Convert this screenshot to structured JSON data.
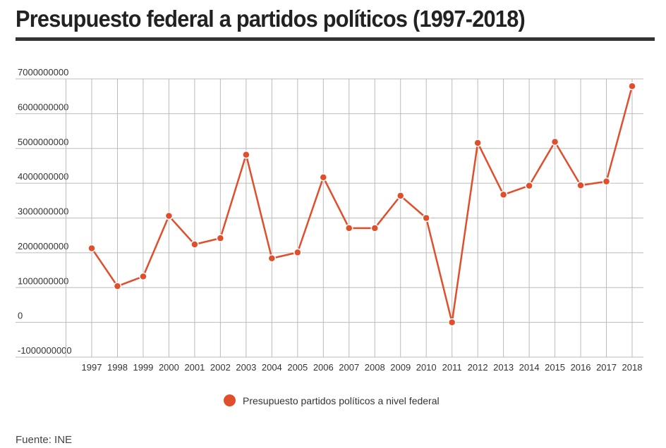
{
  "title": "Presupuesto federal a partidos políticos (1997-2018)",
  "source": "Fuente: INE",
  "colors": {
    "series": "#e04e2c",
    "grid": "#bbbbbb",
    "title_rule": "#333333"
  },
  "chart_data": {
    "type": "line",
    "title": "Presupuesto federal a partidos políticos (1997-2018)",
    "xlabel": "",
    "ylabel": "",
    "categories": [
      "1997",
      "1998",
      "1999",
      "2000",
      "2001",
      "2002",
      "2003",
      "2004",
      "2005",
      "2006",
      "2007",
      "2008",
      "2009",
      "2010",
      "2011",
      "2012",
      "2013",
      "2014",
      "2015",
      "2016",
      "2017",
      "2018"
    ],
    "y_ticks": [
      "7000000000",
      "6000000000",
      "5000000000",
      "4000000000",
      "3000000000",
      "2000000000",
      "1000000000",
      "0",
      "-1000000000"
    ],
    "ylim": [
      -1000000000,
      7000000000
    ],
    "grid": true,
    "legend_position": "bottom",
    "series": [
      {
        "name": "Presupuesto partidos políticos a nivel federal",
        "color": "#e04e2c",
        "values": [
          2130000000,
          1040000000,
          1320000000,
          3060000000,
          2240000000,
          2420000000,
          4820000000,
          1840000000,
          2010000000,
          4170000000,
          2710000000,
          2710000000,
          3640000000,
          3000000000,
          0,
          5160000000,
          3670000000,
          3930000000,
          5190000000,
          3940000000,
          4050000000,
          6790000000
        ]
      }
    ]
  }
}
